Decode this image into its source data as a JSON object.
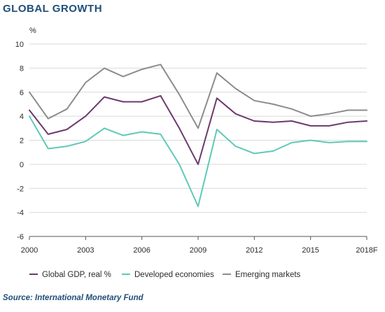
{
  "title": "GLOBAL GROWTH",
  "source": "Source: International Monetary Fund",
  "colors": {
    "title": "#1f4e79",
    "source": "#1f4e79",
    "grid": "#d9d9d9",
    "axis": "#555555"
  },
  "chart_data": {
    "type": "line",
    "ylabel": "%",
    "ylim": [
      -6,
      10
    ],
    "yticks": [
      10,
      8,
      6,
      4,
      2,
      0,
      -2,
      -4,
      -6
    ],
    "xlim": [
      2000,
      2018
    ],
    "xticks": [
      "2000",
      "2003",
      "2006",
      "2009",
      "2012",
      "2015",
      "2018F"
    ],
    "grid": "horizontal",
    "legend_position": "bottom",
    "x": [
      2000,
      2001,
      2002,
      2003,
      2004,
      2005,
      2006,
      2007,
      2008,
      2009,
      2010,
      2011,
      2012,
      2013,
      2014,
      2015,
      2016,
      2017,
      2018
    ],
    "series": [
      {
        "name": "Global GDP, real %",
        "color": "#6b3a6e",
        "values": [
          4.5,
          2.5,
          2.9,
          4.0,
          5.6,
          5.2,
          5.2,
          5.7,
          3.0,
          0.0,
          5.5,
          4.2,
          3.6,
          3.5,
          3.6,
          3.2,
          3.2,
          3.5,
          3.6
        ]
      },
      {
        "name": "Developed economies",
        "color": "#5fc9b8",
        "values": [
          4.0,
          1.3,
          1.5,
          1.9,
          3.0,
          2.4,
          2.7,
          2.5,
          0.0,
          -3.5,
          2.9,
          1.5,
          0.9,
          1.1,
          1.8,
          2.0,
          1.8,
          1.9,
          1.9
        ]
      },
      {
        "name": "Emerging markets",
        "color": "#8c8c8c",
        "values": [
          6.0,
          3.8,
          4.6,
          6.8,
          8.0,
          7.3,
          7.9,
          8.3,
          5.8,
          3.0,
          7.6,
          6.3,
          5.3,
          5.0,
          4.6,
          4.0,
          4.2,
          4.5,
          4.5
        ]
      }
    ]
  }
}
